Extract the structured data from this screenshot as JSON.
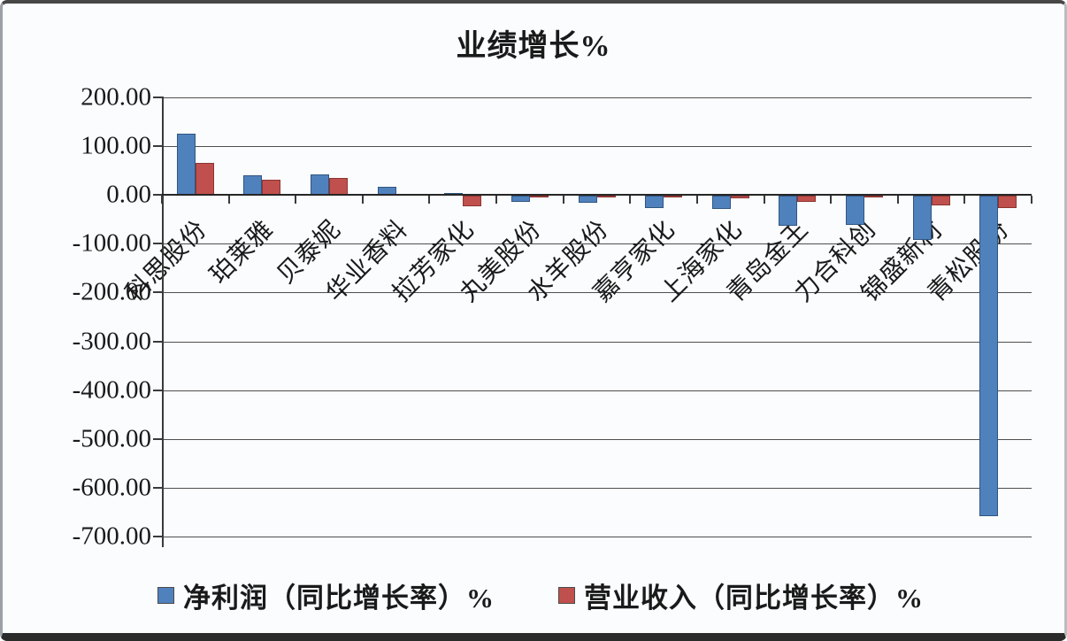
{
  "chart_data": {
    "type": "bar",
    "title": "业绩增长%",
    "categories": [
      "科思股份",
      "珀莱雅",
      "贝泰妮",
      "华业香料",
      "拉芳家化",
      "丸美股份",
      "水羊股份",
      "嘉亨家化",
      "上海家化",
      "青岛金王",
      "力合科创",
      "锦盛新材",
      "青松股份"
    ],
    "series": [
      {
        "name": "净利润（同比增长率）%",
        "color": "#4f81bd",
        "border_color": "#30567f",
        "values": [
          125,
          40,
          41,
          16,
          3,
          -13,
          -15,
          -25,
          -28,
          -61,
          -60,
          -90,
          -655
        ]
      },
      {
        "name": "营业收入（同比增长率）%",
        "color": "#c0504d",
        "border_color": "#8c3431",
        "values": [
          65,
          30,
          34,
          1,
          -21,
          -3,
          -3,
          -4,
          -5,
          -13,
          -1,
          -20,
          -25
        ]
      }
    ],
    "ylim": [
      -700,
      200
    ],
    "ytick_step": 100,
    "ytick_labels": [
      "200.00",
      "100.00",
      "0.00",
      "-100.00",
      "-200.00",
      "-300.00",
      "-400.00",
      "-500.00",
      "-600.00",
      "-700.00"
    ],
    "grid": true,
    "gridline_color": "#4f4f4f",
    "legend_position": "bottom",
    "xlabel": "",
    "ylabel": ""
  }
}
